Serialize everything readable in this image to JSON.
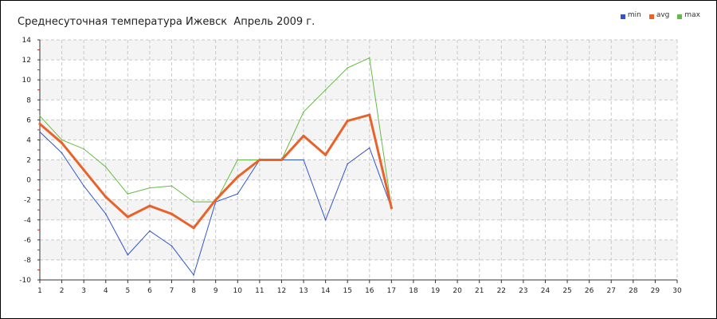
{
  "chart_data": {
    "type": "line",
    "title": "Среднесуточная температура Ижевск  Апрель 2009 г.",
    "xlabel": "",
    "ylabel": "",
    "x": [
      1,
      2,
      3,
      4,
      5,
      6,
      7,
      8,
      9,
      10,
      11,
      12,
      13,
      14,
      15,
      16,
      17
    ],
    "xlim": [
      1,
      30
    ],
    "ylim": [
      -10,
      14
    ],
    "xticks": [
      1,
      2,
      3,
      4,
      5,
      6,
      7,
      8,
      9,
      10,
      11,
      12,
      13,
      14,
      15,
      16,
      17,
      18,
      19,
      20,
      21,
      22,
      23,
      24,
      25,
      26,
      27,
      28,
      29,
      30
    ],
    "yticks": [
      -10,
      -8,
      -6,
      -4,
      -2,
      0,
      2,
      4,
      6,
      8,
      10,
      12,
      14
    ],
    "grid": true,
    "legend_position": "top-right",
    "series": [
      {
        "name": "min",
        "color": "#3355cc",
        "values": [
          4.8,
          2.7,
          -0.6,
          -3.4,
          -7.5,
          -5.1,
          -6.6,
          -9.5,
          -2.2,
          -1.4,
          2.0,
          2.0,
          2.0,
          -4.0,
          1.6,
          3.2,
          -2.8
        ]
      },
      {
        "name": "avg",
        "color": "#e8622a",
        "values": [
          5.6,
          3.7,
          1.0,
          -1.7,
          -3.7,
          -2.6,
          -3.4,
          -4.8,
          -2.0,
          0.3,
          2.0,
          2.0,
          4.4,
          2.5,
          5.9,
          6.5,
          -2.8
        ]
      },
      {
        "name": "max",
        "color": "#66bb44",
        "values": [
          6.4,
          4.0,
          3.1,
          1.3,
          -1.4,
          -0.8,
          -0.6,
          -2.2,
          -2.2,
          2.0,
          2.0,
          2.0,
          6.8,
          9.0,
          11.2,
          12.2,
          -2.8
        ]
      }
    ]
  }
}
